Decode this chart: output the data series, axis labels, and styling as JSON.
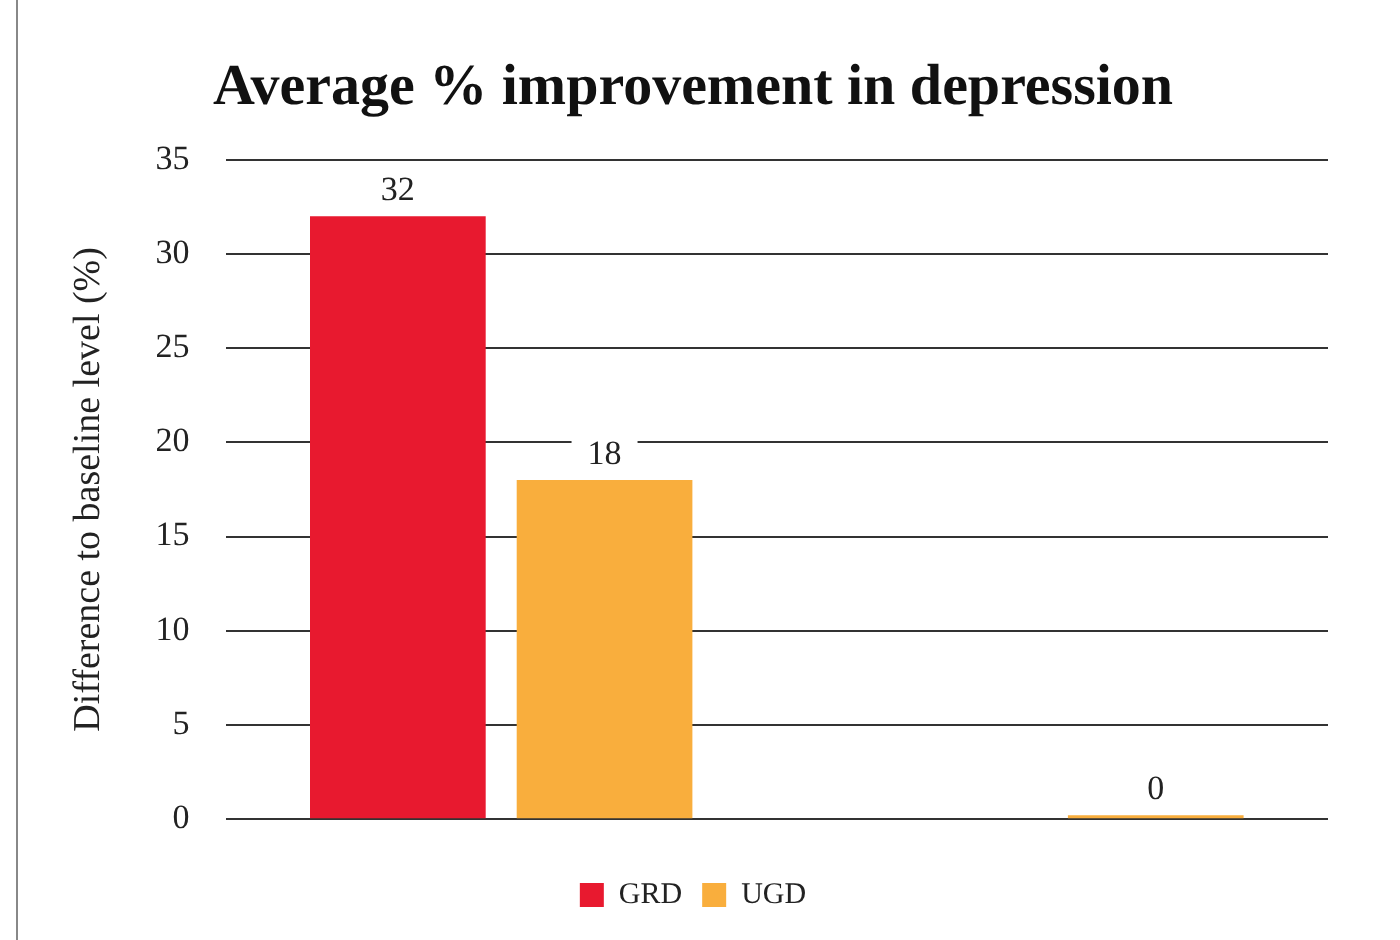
{
  "chart_data": {
    "type": "bar",
    "title": "Average % improvement in depression",
    "ylabel": "Difference to baseline level (%)",
    "categories": [
      null,
      null
    ],
    "series": [
      {
        "name": "GRD",
        "color": "#e8192f",
        "values": [
          32,
          null
        ]
      },
      {
        "name": "UGD",
        "color": "#f9ae3d",
        "values": [
          18,
          0
        ]
      }
    ],
    "ylim": [
      0,
      35
    ],
    "yticks": [
      0,
      5,
      10,
      15,
      20,
      25,
      30,
      35
    ],
    "grid": "y",
    "legend": "bottom",
    "data_labels": true
  }
}
